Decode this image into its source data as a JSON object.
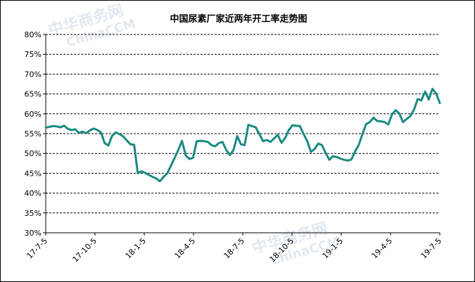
{
  "chart_data": {
    "type": "line",
    "title": "中国尿素厂家近两年开工率走势图",
    "xlabel": "",
    "ylabel": "",
    "ylim": [
      30,
      80
    ],
    "y_step": 5,
    "y_unit": "%",
    "grid": true,
    "x_ticks": [
      "17-7-5",
      "17-10-5",
      "18-1-5",
      "18-4-5",
      "18-7-5",
      "18-10-5",
      "19-1-5",
      "19-4-5",
      "19-7-5"
    ],
    "series": [
      {
        "color": "#1a8a80",
        "values": [
          56.5,
          56.7,
          56.9,
          56.8,
          56.6,
          57.0,
          56.2,
          55.9,
          56.1,
          55.2,
          55.5,
          55.1,
          55.8,
          56.3,
          55.9,
          55.3,
          52.6,
          52.0,
          54.4,
          55.3,
          54.9,
          54.3,
          53.3,
          52.3,
          52.2,
          45.0,
          45.5,
          45.1,
          44.6,
          44.1,
          43.7,
          43.0,
          44.1,
          45.0,
          46.9,
          48.9,
          50.9,
          53.2,
          49.5,
          48.6,
          48.9,
          53.1,
          53.2,
          53.1,
          52.9,
          52.1,
          51.8,
          52.6,
          52.9,
          50.9,
          49.6,
          50.9,
          54.4,
          52.3,
          52.1,
          57.2,
          56.9,
          56.6,
          54.9,
          53.1,
          53.4,
          52.9,
          53.8,
          54.7,
          52.7,
          53.9,
          55.9,
          57.1,
          57.0,
          56.9,
          54.9,
          53.1,
          50.4,
          51.1,
          52.5,
          52.1,
          50.1,
          48.4,
          49.3,
          49.1,
          48.7,
          48.4,
          48.2,
          48.5,
          50.5,
          52.2,
          54.9,
          57.4,
          57.9,
          59.0,
          58.2,
          58.1,
          57.9,
          57.3,
          59.8,
          60.9,
          60.1,
          57.9,
          58.7,
          59.4,
          61.1,
          63.7,
          63.4,
          65.6,
          63.6,
          66.3,
          65.1,
          62.7
        ]
      }
    ]
  },
  "watermarks": [
    "中华商务网",
    "ChinaCCM"
  ]
}
